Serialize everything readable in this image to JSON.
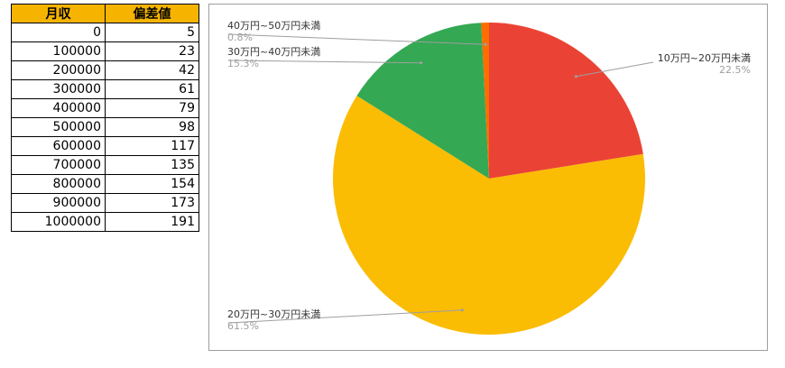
{
  "table": {
    "headers": [
      "月収",
      "偏差値"
    ],
    "rows": [
      [
        "0",
        "5"
      ],
      [
        "100000",
        "23"
      ],
      [
        "200000",
        "42"
      ],
      [
        "300000",
        "61"
      ],
      [
        "400000",
        "79"
      ],
      [
        "500000",
        "98"
      ],
      [
        "600000",
        "117"
      ],
      [
        "700000",
        "135"
      ],
      [
        "800000",
        "154"
      ],
      [
        "900000",
        "173"
      ],
      [
        "1000000",
        "191"
      ]
    ],
    "header_color": "#f6b400"
  },
  "chart_data": {
    "type": "pie",
    "slices": [
      {
        "label": "10万円~20万円未満",
        "percent_text": "22.5%",
        "value": 22.5,
        "color": "#ea4335"
      },
      {
        "label": "20万円~30万円未満",
        "percent_text": "61.5%",
        "value": 61.5,
        "color": "#fbbc04"
      },
      {
        "label": "30万円~40万円未満",
        "percent_text": "15.3%",
        "value": 15.3,
        "color": "#34a853"
      },
      {
        "label": "40万円~50万円未満",
        "percent_text": "0.8%",
        "value": 0.8,
        "color": "#ff6d01"
      }
    ]
  }
}
